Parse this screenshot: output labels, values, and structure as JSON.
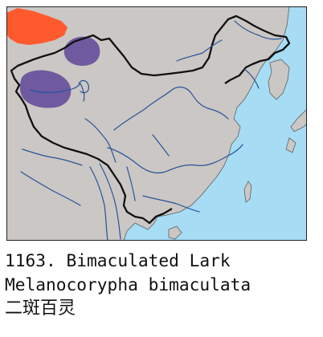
{
  "map": {
    "colors": {
      "sea": "#a6dcf4",
      "land": "#cbc7c4",
      "border": "#111111",
      "rivers": "#27549a",
      "breeding_range": "#6f5aa0",
      "winter_range": "#ff5a2e"
    },
    "legend_hint": "purple = breeding range, orange = wintering range"
  },
  "caption": {
    "line1": "1163. Bimaculated Lark",
    "line2": "Melanocorypha bimaculata",
    "line3": "二斑百灵"
  }
}
